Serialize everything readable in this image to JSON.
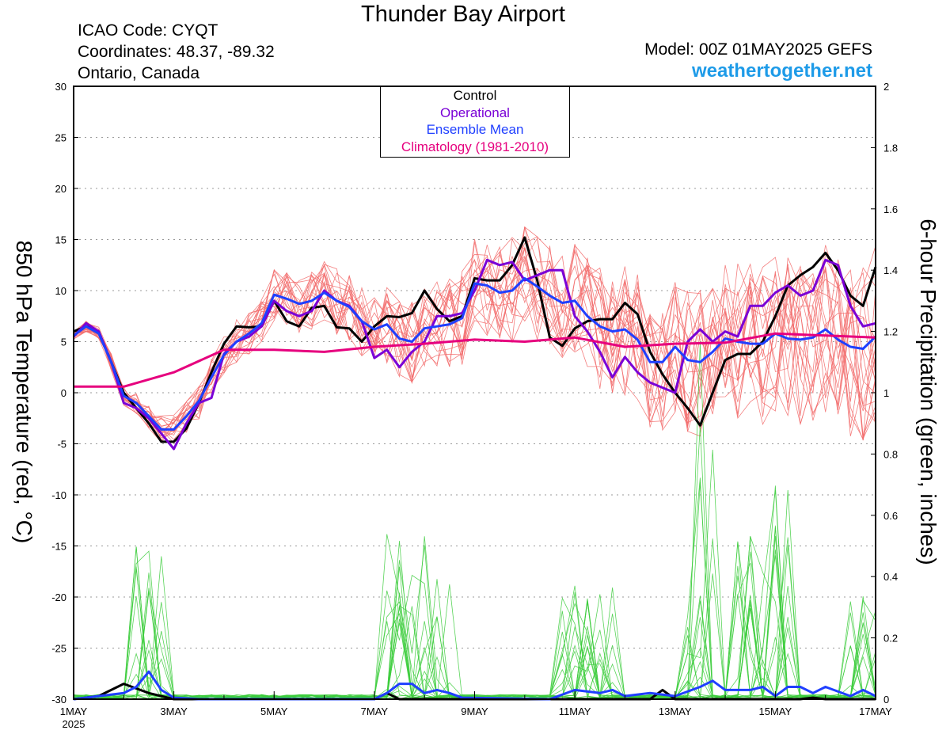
{
  "header": {
    "title": "Thunder Bay Airport",
    "icao": "ICAO Code: CYQT",
    "coordinates": "Coordinates: 48.37, -89.32",
    "region": "Ontario, Canada",
    "model": "Model: 00Z 01MAY2025 GEFS",
    "site": "weathertogether.net"
  },
  "colors": {
    "control": "#000000",
    "operational": "#7a00d6",
    "ensemble_mean": "#1f3fff",
    "climatology": "#e6007e",
    "members_temp": "#f26a6a",
    "members_precip": "#3ccc3c",
    "site": "#1e9be8"
  },
  "chart_data": {
    "type": "line",
    "title": "Thunder Bay Airport",
    "ylabel": "850 hPa Temperature (red, °C)",
    "y2label": "6-hour Precipitation (green, inches)",
    "xlim_days": [
      0,
      16
    ],
    "ylim": [
      -30,
      30
    ],
    "y2lim": [
      0,
      2
    ],
    "grid": "dotted horizontal",
    "legend_position": "top-center",
    "y_ticks": [
      -30,
      -25,
      -20,
      -15,
      -10,
      -5,
      0,
      5,
      10,
      15,
      20,
      25,
      30
    ],
    "y2_ticks": [
      0,
      0.2,
      0.4,
      0.6,
      0.8,
      1,
      1.2,
      1.4,
      1.6,
      1.8,
      2
    ],
    "x_ticks": [
      {
        "day": 0,
        "label": "1MAY",
        "sub": "2025"
      },
      {
        "day": 2,
        "label": "3MAY"
      },
      {
        "day": 4,
        "label": "5MAY"
      },
      {
        "day": 6,
        "label": "7MAY"
      },
      {
        "day": 8,
        "label": "9MAY"
      },
      {
        "day": 10,
        "label": "11MAY"
      },
      {
        "day": 12,
        "label": "13MAY"
      },
      {
        "day": 14,
        "label": "15MAY"
      },
      {
        "day": 16,
        "label": "17MAY"
      }
    ],
    "legend": [
      "Control",
      "Operational",
      "Ensemble Mean",
      "Climatology (1981-2010)"
    ],
    "series": [
      {
        "name": "Control",
        "axis": "temp",
        "points": [
          [
            0,
            6.0
          ],
          [
            0.25,
            6.5
          ],
          [
            0.5,
            6.0
          ],
          [
            0.75,
            3.0
          ],
          [
            1,
            0.0
          ],
          [
            1.25,
            -1.5
          ],
          [
            1.5,
            -3.0
          ],
          [
            1.75,
            -4.8
          ],
          [
            2,
            -4.8
          ],
          [
            2.25,
            -3.5
          ],
          [
            2.5,
            -1.0
          ],
          [
            2.75,
            2.0
          ],
          [
            3,
            4.8
          ],
          [
            3.25,
            6.5
          ],
          [
            3.5,
            6.4
          ],
          [
            3.75,
            6.5
          ],
          [
            4,
            9.0
          ],
          [
            4.25,
            7.0
          ],
          [
            4.5,
            6.5
          ],
          [
            4.75,
            8.3
          ],
          [
            5,
            8.5
          ],
          [
            5.25,
            6.4
          ],
          [
            5.5,
            6.3
          ],
          [
            5.75,
            5.0
          ],
          [
            6,
            6.5
          ],
          [
            6.25,
            7.5
          ],
          [
            6.5,
            7.4
          ],
          [
            6.75,
            7.8
          ],
          [
            7,
            10.0
          ],
          [
            7.25,
            8.2
          ],
          [
            7.5,
            7.0
          ],
          [
            7.75,
            7.5
          ],
          [
            8,
            11.2
          ],
          [
            8.25,
            11.0
          ],
          [
            8.5,
            11.0
          ],
          [
            8.75,
            12.5
          ],
          [
            9,
            15.2
          ],
          [
            9.25,
            11.0
          ],
          [
            9.5,
            5.4
          ],
          [
            9.75,
            4.6
          ],
          [
            10,
            6.3
          ],
          [
            10.25,
            7.0
          ],
          [
            10.5,
            7.2
          ],
          [
            10.75,
            7.2
          ],
          [
            11,
            8.8
          ],
          [
            11.25,
            7.7
          ],
          [
            11.5,
            4.0
          ],
          [
            11.75,
            1.8
          ],
          [
            12,
            0.0
          ],
          [
            12.25,
            -1.5
          ],
          [
            12.5,
            -3.2
          ],
          [
            12.75,
            0.0
          ],
          [
            13,
            3.2
          ],
          [
            13.25,
            3.8
          ],
          [
            13.5,
            3.8
          ],
          [
            13.75,
            5.0
          ],
          [
            14,
            7.5
          ],
          [
            14.25,
            10.5
          ],
          [
            14.5,
            11.5
          ],
          [
            14.75,
            12.3
          ],
          [
            15,
            13.7
          ],
          [
            15.25,
            12.0
          ],
          [
            15.5,
            9.5
          ],
          [
            15.75,
            8.5
          ],
          [
            16,
            12.3
          ]
        ]
      },
      {
        "name": "Operational",
        "axis": "temp",
        "points": [
          [
            0,
            5.5
          ],
          [
            0.25,
            6.8
          ],
          [
            0.5,
            6.0
          ],
          [
            0.75,
            3.0
          ],
          [
            1,
            -1.0
          ],
          [
            1.25,
            -1.5
          ],
          [
            1.5,
            -2.5
          ],
          [
            1.75,
            -4.0
          ],
          [
            2,
            -5.5
          ],
          [
            2.25,
            -3.0
          ],
          [
            2.5,
            -1.0
          ],
          [
            2.75,
            -0.5
          ],
          [
            3,
            3.8
          ],
          [
            3.25,
            5.0
          ],
          [
            3.5,
            5.5
          ],
          [
            3.75,
            6.5
          ],
          [
            4,
            9.0
          ],
          [
            4.25,
            8.0
          ],
          [
            4.5,
            7.5
          ],
          [
            4.75,
            8.0
          ],
          [
            5,
            10.0
          ],
          [
            5.25,
            9.0
          ],
          [
            5.5,
            8.5
          ],
          [
            5.75,
            7.0
          ],
          [
            6,
            3.4
          ],
          [
            6.25,
            4.2
          ],
          [
            6.5,
            2.5
          ],
          [
            6.75,
            4.0
          ],
          [
            7,
            5.0
          ],
          [
            7.25,
            7.5
          ],
          [
            7.5,
            7.5
          ],
          [
            7.75,
            7.8
          ],
          [
            8,
            10.0
          ],
          [
            8.25,
            13.0
          ],
          [
            8.5,
            12.5
          ],
          [
            8.75,
            12.8
          ],
          [
            9,
            11.0
          ],
          [
            9.25,
            11.5
          ],
          [
            9.5,
            12.0
          ],
          [
            9.75,
            12.0
          ],
          [
            10,
            7.5
          ],
          [
            10.25,
            6.0
          ],
          [
            10.5,
            4.0
          ],
          [
            10.75,
            1.5
          ],
          [
            11,
            3.5
          ],
          [
            11.25,
            2.0
          ],
          [
            11.5,
            1.0
          ],
          [
            11.75,
            0.5
          ],
          [
            12,
            0.0
          ],
          [
            12.25,
            5.0
          ],
          [
            12.5,
            6.2
          ],
          [
            12.75,
            5.0
          ],
          [
            13,
            6.0
          ],
          [
            13.25,
            5.5
          ],
          [
            13.5,
            8.5
          ],
          [
            13.75,
            8.5
          ],
          [
            14,
            9.8
          ],
          [
            14.25,
            10.5
          ],
          [
            14.5,
            9.5
          ],
          [
            14.75,
            10.0
          ],
          [
            15,
            13.0
          ],
          [
            15.25,
            12.5
          ],
          [
            15.5,
            8.5
          ],
          [
            15.75,
            6.5
          ],
          [
            16,
            6.8
          ]
        ]
      },
      {
        "name": "Ensemble Mean",
        "axis": "temp",
        "points": [
          [
            0,
            5.6
          ],
          [
            0.25,
            6.5
          ],
          [
            0.5,
            5.8
          ],
          [
            0.75,
            3.0
          ],
          [
            1,
            -0.3
          ],
          [
            1.25,
            -1.0
          ],
          [
            1.5,
            -2.3
          ],
          [
            1.75,
            -3.6
          ],
          [
            2,
            -3.6
          ],
          [
            2.25,
            -2.3
          ],
          [
            2.5,
            -0.8
          ],
          [
            2.75,
            1.5
          ],
          [
            3,
            3.7
          ],
          [
            3.25,
            5.0
          ],
          [
            3.5,
            5.8
          ],
          [
            3.75,
            6.8
          ],
          [
            4,
            9.6
          ],
          [
            4.25,
            9.2
          ],
          [
            4.5,
            8.7
          ],
          [
            4.75,
            9.0
          ],
          [
            5,
            9.8
          ],
          [
            5.25,
            9.0
          ],
          [
            5.5,
            8.4
          ],
          [
            5.75,
            7.0
          ],
          [
            6,
            6.2
          ],
          [
            6.25,
            6.7
          ],
          [
            6.5,
            5.3
          ],
          [
            6.75,
            5.0
          ],
          [
            7,
            6.3
          ],
          [
            7.25,
            6.5
          ],
          [
            7.5,
            6.7
          ],
          [
            7.75,
            7.3
          ],
          [
            8,
            10.7
          ],
          [
            8.25,
            10.5
          ],
          [
            8.5,
            9.8
          ],
          [
            8.75,
            10.0
          ],
          [
            9,
            11.2
          ],
          [
            9.25,
            10.4
          ],
          [
            9.5,
            9.5
          ],
          [
            9.75,
            8.8
          ],
          [
            10,
            9.0
          ],
          [
            10.25,
            7.5
          ],
          [
            10.5,
            6.5
          ],
          [
            10.75,
            6.0
          ],
          [
            11,
            6.2
          ],
          [
            11.25,
            5.2
          ],
          [
            11.5,
            3.0
          ],
          [
            11.75,
            3.0
          ],
          [
            12,
            4.5
          ],
          [
            12.25,
            3.2
          ],
          [
            12.5,
            3.0
          ],
          [
            12.75,
            4.0
          ],
          [
            13,
            5.3
          ],
          [
            13.25,
            5.0
          ],
          [
            13.5,
            4.8
          ],
          [
            13.75,
            4.8
          ],
          [
            14,
            5.8
          ],
          [
            14.25,
            5.3
          ],
          [
            14.5,
            5.2
          ],
          [
            14.75,
            5.4
          ],
          [
            15,
            6.2
          ],
          [
            15.25,
            5.2
          ],
          [
            15.5,
            4.5
          ],
          [
            15.75,
            4.3
          ],
          [
            16,
            5.5
          ]
        ]
      },
      {
        "name": "Climatology (1981-2010)",
        "axis": "temp",
        "points": [
          [
            0,
            0.6
          ],
          [
            1,
            0.6
          ],
          [
            2,
            2.0
          ],
          [
            3,
            4.2
          ],
          [
            4,
            4.2
          ],
          [
            5,
            4.0
          ],
          [
            6,
            4.5
          ],
          [
            7,
            4.8
          ],
          [
            8,
            5.2
          ],
          [
            9,
            5.0
          ],
          [
            10,
            5.4
          ],
          [
            11,
            4.5
          ],
          [
            12,
            4.8
          ],
          [
            13,
            4.9
          ],
          [
            14,
            5.8
          ],
          [
            15,
            5.6
          ],
          [
            16,
            5.4
          ]
        ]
      },
      {
        "name": "Control",
        "axis": "precip",
        "points": [
          [
            0,
            0
          ],
          [
            0.5,
            0.01
          ],
          [
            1,
            0.05
          ],
          [
            1.5,
            0.02
          ],
          [
            2,
            0
          ],
          [
            4,
            0
          ],
          [
            6,
            0
          ],
          [
            6.25,
            0.02
          ],
          [
            6.5,
            0
          ],
          [
            11.5,
            0
          ],
          [
            11.75,
            0.03
          ],
          [
            12,
            0
          ],
          [
            14.5,
            0
          ],
          [
            14.75,
            0.005
          ],
          [
            15,
            0
          ],
          [
            16,
            0
          ]
        ]
      },
      {
        "name": "Ensemble Mean",
        "axis": "precip",
        "points": [
          [
            0,
            0
          ],
          [
            0.5,
            0.01
          ],
          [
            1,
            0.02
          ],
          [
            1.25,
            0.04
          ],
          [
            1.5,
            0.09
          ],
          [
            1.75,
            0.03
          ],
          [
            2,
            0.005
          ],
          [
            2.5,
            0
          ],
          [
            6,
            0
          ],
          [
            6.25,
            0.02
          ],
          [
            6.5,
            0.05
          ],
          [
            6.75,
            0.05
          ],
          [
            7,
            0.02
          ],
          [
            7.25,
            0.03
          ],
          [
            7.5,
            0.02
          ],
          [
            7.75,
            0.005
          ],
          [
            9.5,
            0
          ],
          [
            10,
            0.03
          ],
          [
            10.5,
            0.02
          ],
          [
            10.75,
            0.03
          ],
          [
            11,
            0.01
          ],
          [
            11.5,
            0.02
          ],
          [
            12,
            0.01
          ],
          [
            12.5,
            0.04
          ],
          [
            12.75,
            0.06
          ],
          [
            13,
            0.03
          ],
          [
            13.5,
            0.03
          ],
          [
            13.75,
            0.04
          ],
          [
            14,
            0.01
          ],
          [
            14.25,
            0.04
          ],
          [
            14.5,
            0.04
          ],
          [
            14.75,
            0.02
          ],
          [
            15,
            0.04
          ],
          [
            15.5,
            0.01
          ],
          [
            15.75,
            0.03
          ],
          [
            16,
            0.01
          ]
        ]
      }
    ]
  }
}
